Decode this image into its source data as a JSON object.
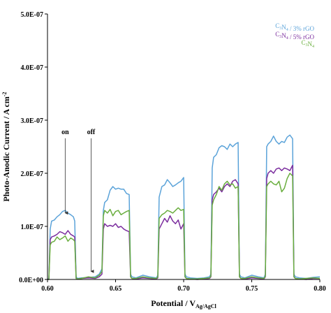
{
  "chart_data": {
    "type": "line",
    "xlabel": "Potential / V",
    "xlabel_sub": "Ag/AgCl",
    "ylabel": "Photo-Anodic Current / A cm",
    "ylabel_sup": "-2",
    "xlim": [
      0.6,
      0.8
    ],
    "ylim": [
      0,
      5e-07
    ],
    "x_ticks": [
      0.6,
      0.65,
      0.7,
      0.75,
      0.8
    ],
    "x_tick_labels": [
      "0.60",
      "0.65",
      "0.70",
      "0.75",
      "0.80"
    ],
    "y_ticks": [
      0,
      1e-07,
      2e-07,
      3e-07,
      4e-07,
      5e-07
    ],
    "y_tick_labels": [
      "0.0E+00",
      "1.0E-07",
      "2.0E-07",
      "3.0E-07",
      "4.0E-07",
      "5.0E-07"
    ],
    "grid": false,
    "legend_position": "top-right",
    "annotations": [
      {
        "text": "on",
        "x": 0.613,
        "y": 1.2e-07
      },
      {
        "text": "off",
        "x": 0.632,
        "y": 1e-08
      }
    ],
    "series": [
      {
        "name": "C3N4 / 3% rGO",
        "legend_parts": [
          [
            "C",
            ""
          ],
          [
            "3",
            "sub"
          ],
          [
            "N",
            ""
          ],
          [
            "4",
            "sub"
          ],
          [
            " / 3% rGO",
            ""
          ]
        ],
        "color": "#5ba3d9",
        "x": [
          0.6,
          0.601,
          0.602,
          0.603,
          0.605,
          0.607,
          0.609,
          0.611,
          0.613,
          0.615,
          0.617,
          0.619,
          0.62,
          0.621,
          0.622,
          0.625,
          0.63,
          0.635,
          0.638,
          0.64,
          0.641,
          0.642,
          0.644,
          0.646,
          0.648,
          0.65,
          0.652,
          0.654,
          0.656,
          0.658,
          0.66,
          0.661,
          0.662,
          0.665,
          0.67,
          0.675,
          0.68,
          0.681,
          0.682,
          0.684,
          0.686,
          0.688,
          0.69,
          0.692,
          0.694,
          0.696,
          0.698,
          0.7,
          0.701,
          0.702,
          0.705,
          0.71,
          0.715,
          0.719,
          0.72,
          0.721,
          0.722,
          0.724,
          0.726,
          0.728,
          0.73,
          0.732,
          0.734,
          0.736,
          0.738,
          0.74,
          0.741,
          0.742,
          0.745,
          0.75,
          0.755,
          0.759,
          0.76,
          0.761,
          0.762,
          0.764,
          0.766,
          0.768,
          0.77,
          0.772,
          0.774,
          0.776,
          0.778,
          0.78,
          0.781,
          0.782,
          0.785,
          0.79,
          0.795,
          0.8
        ],
        "y": [
          1e-09,
          1e-09,
          9.5e-08,
          1.1e-07,
          1.12e-07,
          1.18e-07,
          1.22e-07,
          1.28e-07,
          1.3e-07,
          1.25e-07,
          1.22e-07,
          1.18e-07,
          1.1e-07,
          5e-09,
          2e-09,
          3e-09,
          4e-09,
          5e-09,
          1e-08,
          2e-08,
          1.3e-07,
          1.45e-07,
          1.5e-07,
          1.68e-07,
          1.75e-07,
          1.7e-07,
          1.72e-07,
          1.7e-07,
          1.7e-07,
          1.62e-07,
          1.6e-07,
          1e-08,
          5e-09,
          3e-09,
          8e-09,
          5e-09,
          3e-09,
          8e-09,
          1.55e-07,
          1.75e-07,
          1.78e-07,
          1.88e-07,
          1.82e-07,
          1.75e-07,
          1.78e-07,
          1.82e-07,
          1.85e-07,
          1.92e-07,
          1e-08,
          5e-09,
          3e-09,
          2e-09,
          3e-09,
          5e-09,
          1e-08,
          2.1e-07,
          2.3e-07,
          2.35e-07,
          2.48e-07,
          2.52e-07,
          2.5e-07,
          2.45e-07,
          2.55e-07,
          2.5e-07,
          2.55e-07,
          2.58e-07,
          1e-08,
          5e-09,
          3e-09,
          8e-09,
          5e-09,
          3e-09,
          1e-08,
          2.5e-07,
          2.55e-07,
          2.6e-07,
          2.7e-07,
          2.6e-07,
          2.55e-07,
          2.6e-07,
          2.58e-07,
          2.68e-07,
          2.72e-07,
          2.65e-07,
          1e-08,
          5e-09,
          3e-09,
          2e-09,
          4e-09,
          5e-09
        ]
      },
      {
        "name": "C3N4 / 5% rGO",
        "legend_parts": [
          [
            "C",
            ""
          ],
          [
            "3",
            "sub"
          ],
          [
            "N",
            ""
          ],
          [
            "4",
            "sub"
          ],
          [
            " / 5% rGO",
            ""
          ]
        ],
        "color": "#7b2d9e",
        "x": [
          0.6,
          0.601,
          0.602,
          0.603,
          0.605,
          0.607,
          0.609,
          0.611,
          0.613,
          0.615,
          0.617,
          0.619,
          0.62,
          0.621,
          0.622,
          0.625,
          0.63,
          0.635,
          0.638,
          0.64,
          0.641,
          0.642,
          0.644,
          0.646,
          0.648,
          0.65,
          0.652,
          0.654,
          0.656,
          0.658,
          0.66,
          0.661,
          0.662,
          0.665,
          0.67,
          0.675,
          0.68,
          0.681,
          0.682,
          0.684,
          0.686,
          0.688,
          0.69,
          0.692,
          0.694,
          0.696,
          0.698,
          0.7,
          0.701,
          0.702,
          0.705,
          0.71,
          0.715,
          0.719,
          0.72,
          0.721,
          0.722,
          0.724,
          0.726,
          0.728,
          0.73,
          0.732,
          0.734,
          0.736,
          0.738,
          0.74,
          0.741,
          0.742,
          0.745,
          0.75,
          0.755,
          0.759,
          0.76,
          0.761,
          0.762,
          0.764,
          0.766,
          0.768,
          0.77,
          0.772,
          0.774,
          0.776,
          0.778,
          0.78,
          0.781,
          0.782,
          0.785,
          0.79,
          0.795,
          0.8
        ],
        "y": [
          0.0,
          0.0,
          7.5e-08,
          8e-08,
          8.2e-08,
          8.5e-08,
          9e-08,
          8.8e-08,
          8.5e-08,
          9.2e-08,
          8.5e-08,
          8.2e-08,
          8e-08,
          2e-09,
          1e-09,
          2e-09,
          3e-09,
          2e-09,
          5e-09,
          1e-08,
          9.5e-08,
          1.05e-07,
          1e-07,
          1.02e-07,
          1e-07,
          1.05e-07,
          9.8e-08,
          1e-07,
          9.5e-08,
          9.2e-08,
          9e-08,
          5e-09,
          2e-09,
          1e-09,
          3e-09,
          2e-09,
          1e-09,
          3e-09,
          9.5e-08,
          1.05e-07,
          1.15e-07,
          1.08e-07,
          1.2e-07,
          1.1e-07,
          1.05e-07,
          1.12e-07,
          9.5e-08,
          1.05e-07,
          5e-09,
          2e-09,
          1e-09,
          0.0,
          1e-09,
          2e-09,
          5e-09,
          1.5e-07,
          1.6e-07,
          1.65e-07,
          1.72e-07,
          1.65e-07,
          1.75e-07,
          1.8e-07,
          1.75e-07,
          1.85e-07,
          1.88e-07,
          1.8e-07,
          5e-09,
          2e-09,
          1e-09,
          3e-09,
          2e-09,
          1e-09,
          5e-09,
          1.9e-07,
          2e-07,
          2.05e-07,
          2e-07,
          2.08e-07,
          2.1e-07,
          2.05e-07,
          2.1e-07,
          2.08e-07,
          2.05e-07,
          2.15e-07,
          5e-09,
          2e-09,
          1e-09,
          0.0,
          2e-09,
          2e-09
        ]
      },
      {
        "name": "C3N4",
        "legend_parts": [
          [
            "C",
            ""
          ],
          [
            "3",
            "sub"
          ],
          [
            "N",
            ""
          ],
          [
            "4",
            "sub"
          ]
        ],
        "color": "#6aae3f",
        "x": [
          0.6,
          0.601,
          0.602,
          0.603,
          0.605,
          0.607,
          0.609,
          0.611,
          0.613,
          0.615,
          0.617,
          0.619,
          0.62,
          0.621,
          0.622,
          0.625,
          0.63,
          0.635,
          0.638,
          0.64,
          0.641,
          0.642,
          0.644,
          0.646,
          0.648,
          0.65,
          0.652,
          0.654,
          0.656,
          0.658,
          0.66,
          0.661,
          0.662,
          0.665,
          0.67,
          0.675,
          0.68,
          0.681,
          0.682,
          0.684,
          0.686,
          0.688,
          0.69,
          0.692,
          0.694,
          0.696,
          0.698,
          0.7,
          0.701,
          0.702,
          0.705,
          0.71,
          0.715,
          0.719,
          0.72,
          0.721,
          0.722,
          0.724,
          0.726,
          0.728,
          0.73,
          0.732,
          0.734,
          0.736,
          0.738,
          0.74,
          0.741,
          0.742,
          0.745,
          0.75,
          0.755,
          0.759,
          0.76,
          0.761,
          0.762,
          0.764,
          0.766,
          0.768,
          0.77,
          0.772,
          0.774,
          0.776,
          0.778,
          0.78,
          0.781,
          0.782,
          0.785,
          0.79,
          0.795,
          0.8
        ],
        "y": [
          0.0,
          0.0,
          6.5e-08,
          7e-08,
          7.2e-08,
          8e-08,
          7.5e-08,
          7.8e-08,
          8.2e-08,
          7.2e-08,
          7.8e-08,
          7.5e-08,
          7.2e-08,
          2e-09,
          1e-09,
          2e-09,
          5e-09,
          3e-09,
          8e-09,
          1.5e-08,
          1.2e-07,
          1.3e-07,
          1.25e-07,
          1.32e-07,
          1.2e-07,
          1.28e-07,
          1.3e-07,
          1.22e-07,
          1.25e-07,
          1.28e-07,
          1.3e-07,
          5e-09,
          2e-09,
          2e-09,
          5e-09,
          3e-09,
          2e-09,
          5e-09,
          1.15e-07,
          1.22e-07,
          1.25e-07,
          1.3e-07,
          1.28e-07,
          1.25e-07,
          1.3e-07,
          1.35e-07,
          1.3e-07,
          1.32e-07,
          5e-09,
          2e-09,
          1e-09,
          1e-09,
          2e-09,
          3e-09,
          6e-09,
          1.4e-07,
          1.5e-07,
          1.6e-07,
          1.75e-07,
          1.68e-07,
          1.8e-07,
          1.85e-07,
          1.78e-07,
          1.8e-07,
          1.72e-07,
          1.75e-07,
          5e-09,
          2e-09,
          2e-09,
          5e-09,
          3e-09,
          2e-09,
          6e-09,
          1.75e-07,
          1.8e-07,
          1.85e-07,
          1.8e-07,
          1.78e-07,
          1.85e-07,
          1.65e-07,
          1.72e-07,
          1.9e-07,
          2e-07,
          1.95e-07,
          5e-09,
          2e-09,
          1e-09,
          2e-09,
          3e-09,
          2e-09
        ]
      }
    ]
  }
}
